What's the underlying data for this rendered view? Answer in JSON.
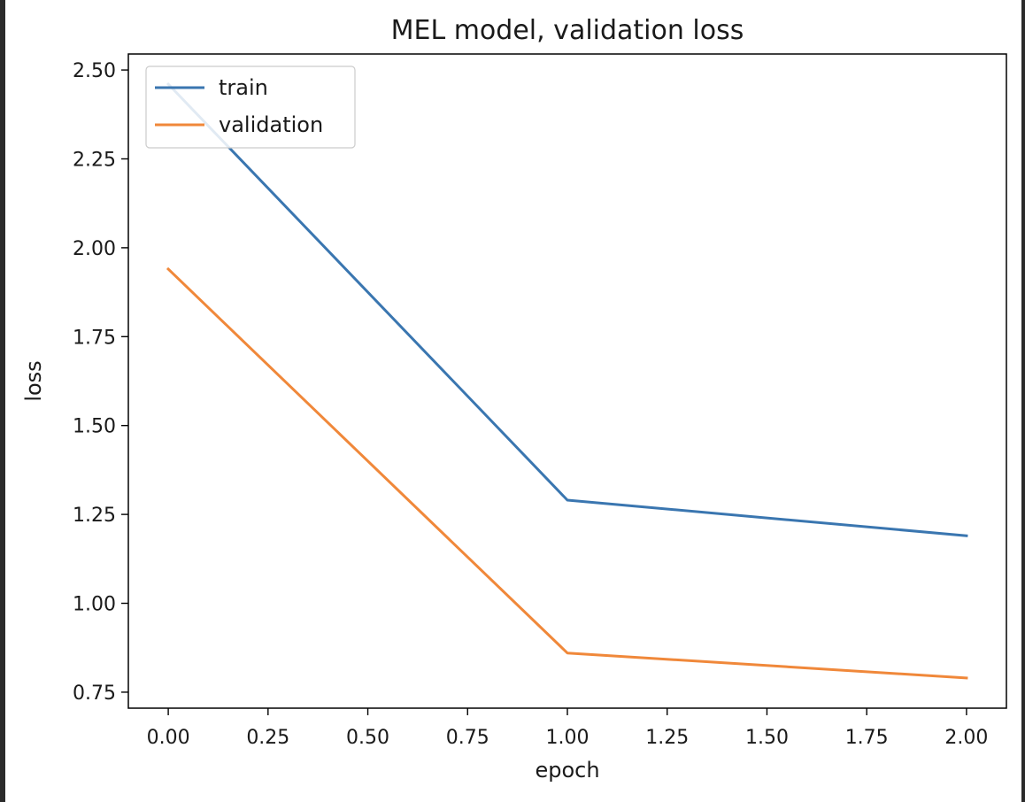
{
  "chart_data": {
    "type": "line",
    "title": "MEL model, validation loss",
    "xlabel": "epoch",
    "ylabel": "loss",
    "x": [
      0,
      1,
      2
    ],
    "series": [
      {
        "name": "train",
        "values": [
          2.46,
          1.29,
          1.19
        ],
        "color": "#3a76b0"
      },
      {
        "name": "validation",
        "values": [
          1.94,
          0.86,
          0.79
        ],
        "color": "#f0883a"
      }
    ],
    "xlim": [
      -0.1,
      2.1
    ],
    "ylim": [
      0.705,
      2.545
    ],
    "xticks": [
      0.0,
      0.25,
      0.5,
      0.75,
      1.0,
      1.25,
      1.5,
      1.75,
      2.0
    ],
    "xtick_labels": [
      "0.00",
      "0.25",
      "0.50",
      "0.75",
      "1.00",
      "1.25",
      "1.50",
      "1.75",
      "2.00"
    ],
    "yticks": [
      0.75,
      1.0,
      1.25,
      1.5,
      1.75,
      2.0,
      2.25,
      2.5
    ],
    "ytick_labels": [
      "0.75",
      "1.00",
      "1.25",
      "1.50",
      "1.75",
      "2.00",
      "2.25",
      "2.50"
    ],
    "grid": false,
    "legend": "upper-left"
  }
}
